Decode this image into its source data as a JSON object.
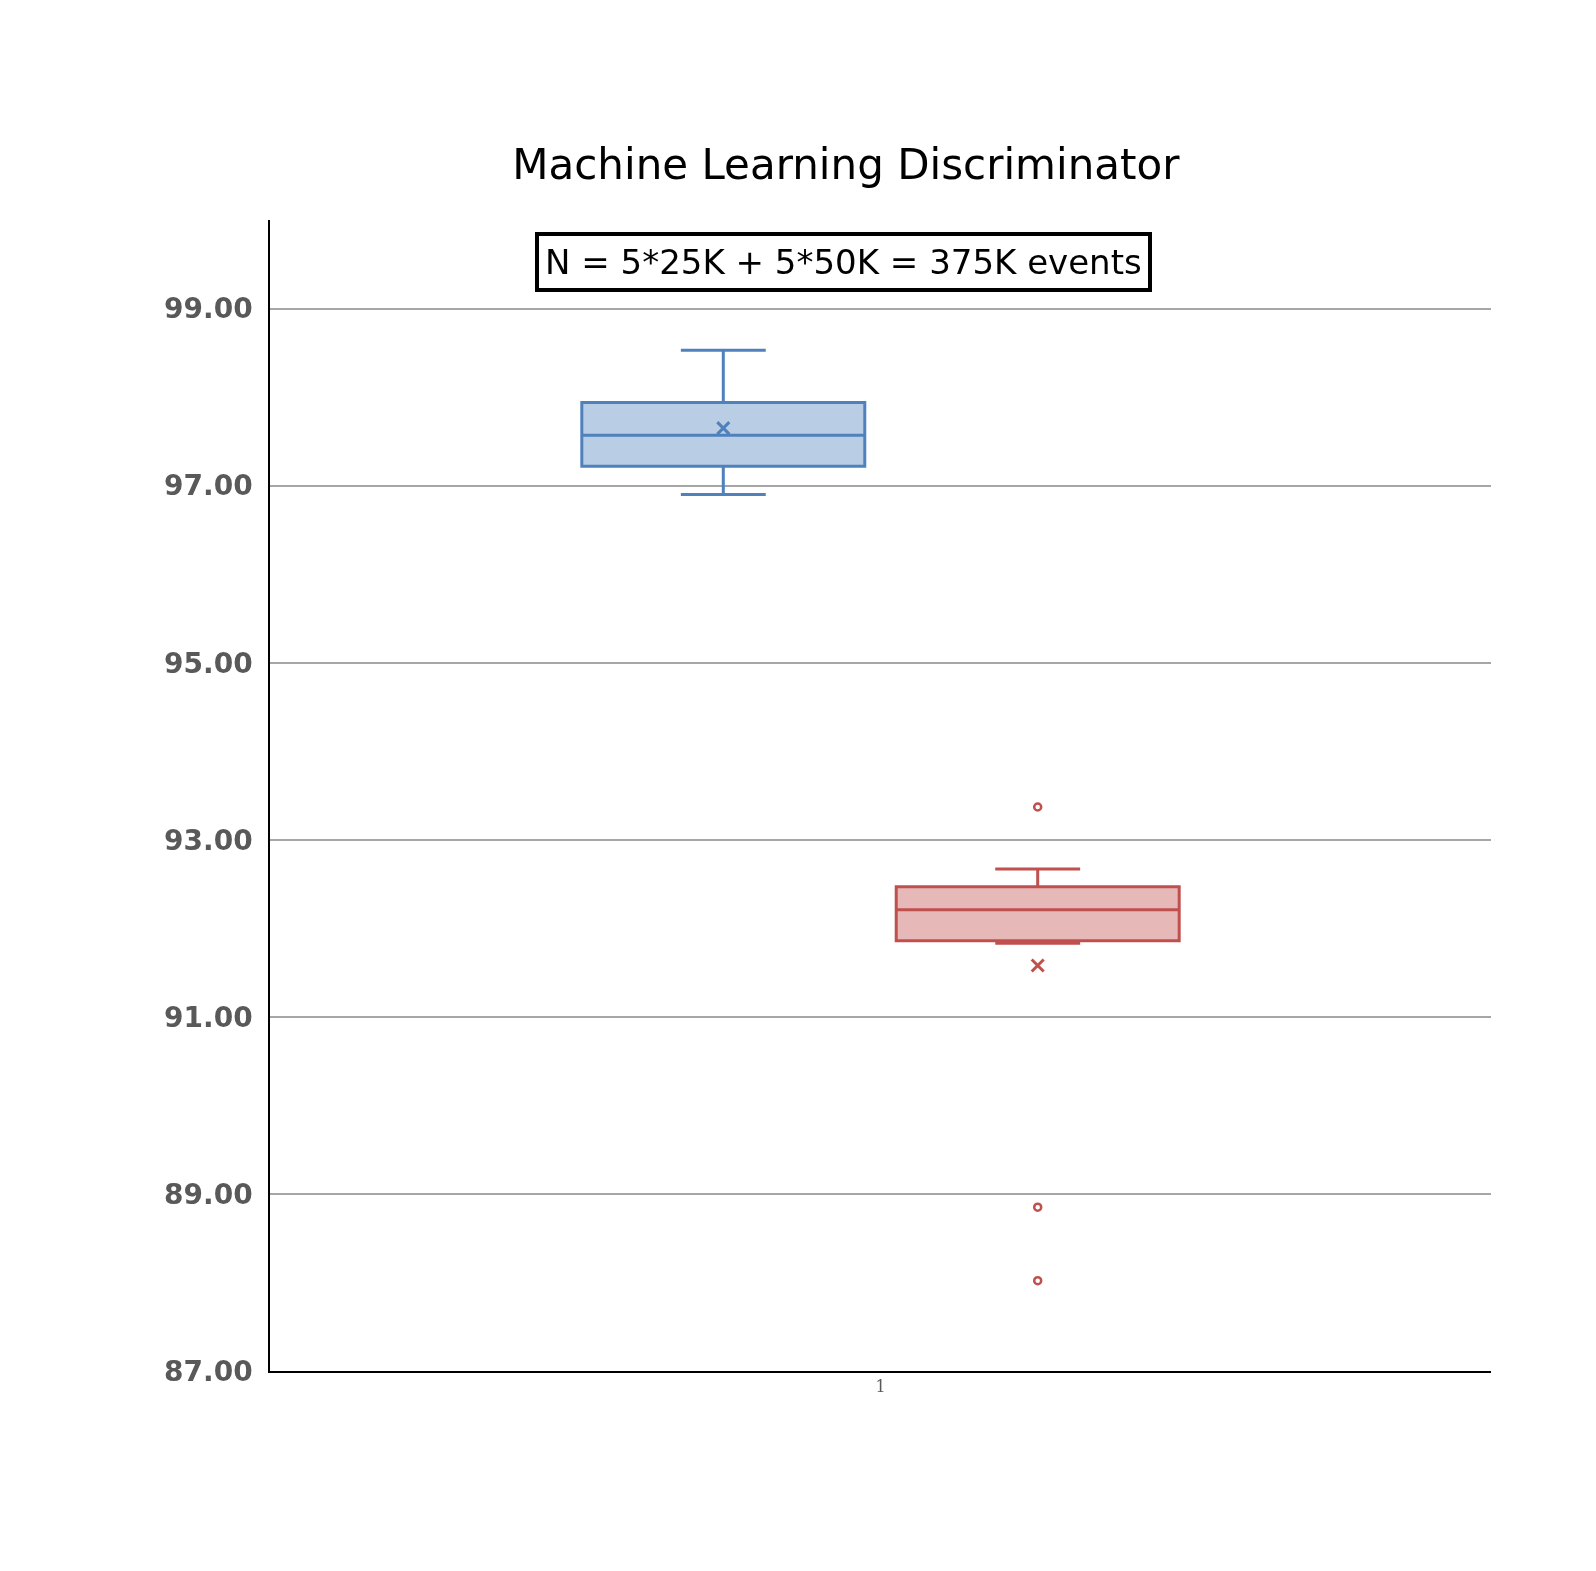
{
  "chart_data": {
    "type": "box",
    "title": "Machine Learning Discriminator",
    "annotations": [
      "N = 5*25K + 5*50K = 375K events"
    ],
    "categories": [
      "1"
    ],
    "series": [
      {
        "color": "#4f81bd",
        "boxes": [
          {
            "low": 96.9,
            "q1": 97.22,
            "median": 97.57,
            "q3": 97.94,
            "high": 98.53,
            "mean": 97.65
          }
        ]
      },
      {
        "color": "#c0504d",
        "boxes": [
          {
            "low": 91.83,
            "q1": 91.86,
            "median": 92.21,
            "q3": 92.47,
            "high": 92.67,
            "mean": 91.58,
            "outliers": [
              93.37,
              88.85,
              88.02
            ]
          }
        ]
      }
    ],
    "ylim": [
      87,
      100
    ],
    "yticks": [
      {
        "value": 87,
        "label": "87.00"
      },
      {
        "value": 89,
        "label": "89.00"
      },
      {
        "value": 91,
        "label": "91.00"
      },
      {
        "value": 93,
        "label": "93.00"
      },
      {
        "value": 95,
        "label": "95.00"
      },
      {
        "value": 97,
        "label": "97.00"
      },
      {
        "value": 99,
        "label": "99.00"
      }
    ],
    "grid": "y",
    "marker": "circle"
  }
}
